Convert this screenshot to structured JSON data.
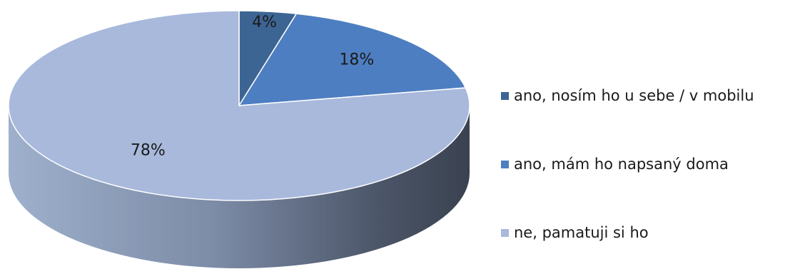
{
  "chart_data": {
    "type": "pie",
    "title": "",
    "categories": [
      "ano, nosím ho u sebe / v mobilu",
      "ano, mám ho napsaný doma",
      "ne, pamatuji si ho"
    ],
    "values": [
      4,
      18,
      78
    ],
    "data_labels": [
      "4%",
      "18%",
      "78%"
    ],
    "colors": [
      "#3d6594",
      "#4d7ec1",
      "#a8b9dc"
    ],
    "legend_position": "right",
    "style": "3d"
  }
}
